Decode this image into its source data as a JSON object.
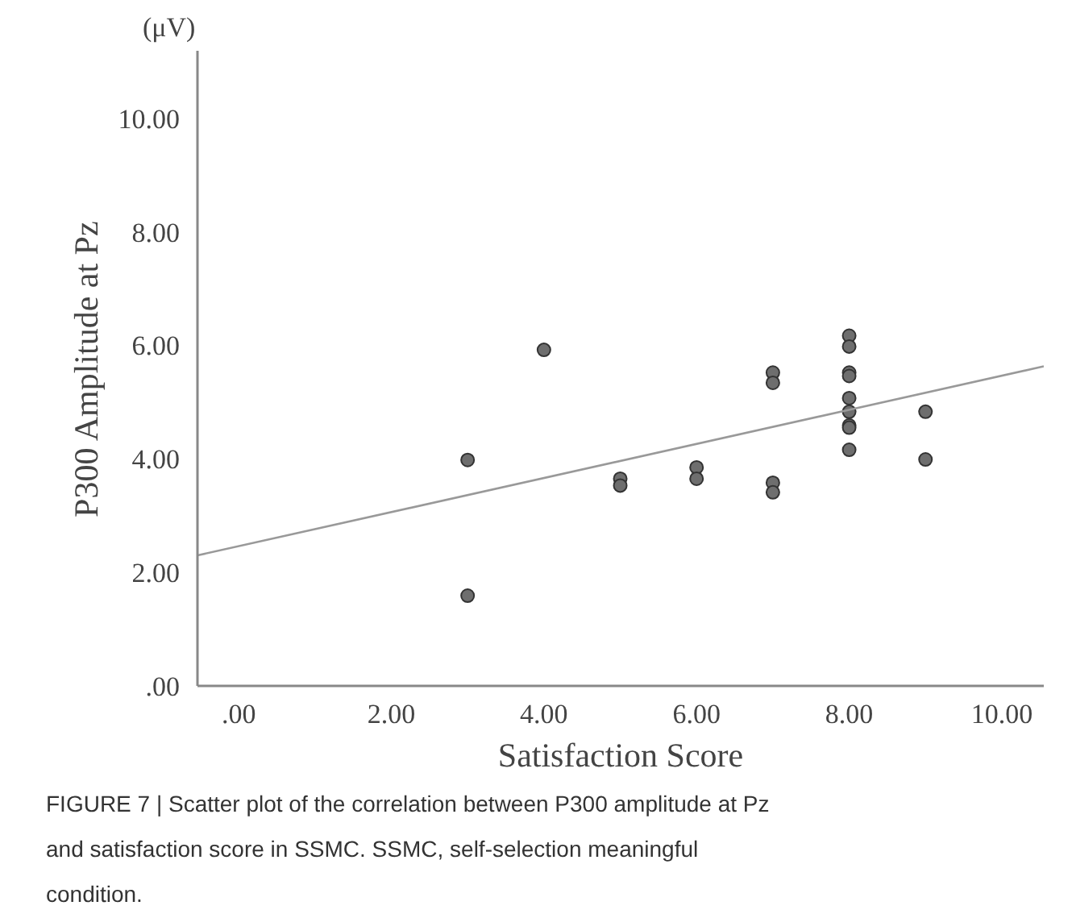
{
  "chart_data": {
    "type": "scatter",
    "xlabel": "Satisfaction Score",
    "ylabel": "P300 Amplitude at Pz",
    "annotations": [
      "(μV)",
      "FIGURE 7 | Scatter plot of the correlation between P300 amplitude at Pz and satisfaction score in SSMC. SSMC, self-selection meaningful condition."
    ],
    "xlim": [
      -0.54,
      10.55
    ],
    "ylim": [
      0,
      11.19
    ],
    "xticks": [
      {
        "value": 0,
        "label": ".00"
      },
      {
        "value": 2,
        "label": "2.00"
      },
      {
        "value": 4,
        "label": "4.00"
      },
      {
        "value": 6,
        "label": "6.00"
      },
      {
        "value": 8,
        "label": "8.00"
      },
      {
        "value": 10,
        "label": "10.00"
      }
    ],
    "yticks": [
      {
        "value": 0,
        "label": ".00"
      },
      {
        "value": 2,
        "label": "2.00"
      },
      {
        "value": 4,
        "label": "4.00"
      },
      {
        "value": 6,
        "label": "6.00"
      },
      {
        "value": 8,
        "label": "8.00"
      },
      {
        "value": 10,
        "label": "10.00"
      }
    ],
    "grid": false,
    "marker": "circle",
    "series": [
      {
        "color": "#6e6e6e",
        "x": [
          3,
          3,
          4,
          5,
          5,
          6,
          6,
          7,
          7,
          7,
          7,
          8,
          8,
          8,
          8,
          8,
          8,
          8,
          8,
          8,
          9,
          9
        ],
        "values": [
          3.98,
          1.59,
          5.92,
          3.65,
          3.53,
          3.85,
          3.65,
          5.52,
          5.34,
          3.58,
          3.41,
          6.17,
          5.98,
          5.52,
          5.46,
          5.07,
          4.83,
          4.59,
          4.55,
          4.16,
          4.83,
          3.99
        ]
      },
      {
        "type": "line",
        "color": "#999999",
        "line_style": "solid",
        "marker": "none",
        "x": [
          -0.54,
          10.55
        ],
        "values": [
          2.3,
          5.63
        ]
      }
    ]
  }
}
